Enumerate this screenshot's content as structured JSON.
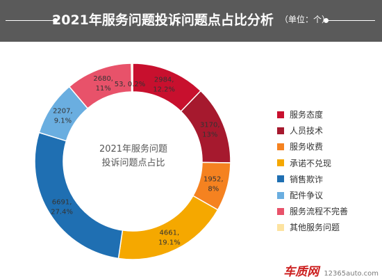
{
  "header": {
    "title": "2021年服务问题投诉问题点占比分析",
    "unit": "（单位：个）"
  },
  "center_label": {
    "line1": "2021年服务问题",
    "line2": "投诉问题点占比"
  },
  "watermark": {
    "brand": "车质网",
    "domain": "12365auto.com"
  },
  "chart_data": {
    "type": "pie",
    "variant": "donut",
    "title": "2021年服务问题投诉问题点占比分析",
    "unit": "个",
    "legend_position": "right",
    "slices": [
      {
        "name": "服务态度",
        "value": 2984,
        "percent": 12.2,
        "label_line1": "2984,",
        "label_line2": "12.2%",
        "color": "#c8102e"
      },
      {
        "name": "人员技术",
        "value": 3170,
        "percent": 13,
        "label_line1": "3170,",
        "label_line2": "13%",
        "color": "#a6192e"
      },
      {
        "name": "服务收费",
        "value": 1952,
        "percent": 8,
        "label_line1": "1952,",
        "label_line2": "8%",
        "color": "#f58220"
      },
      {
        "name": "承诺不兑现",
        "value": 4661,
        "percent": 19.1,
        "label_line1": "4661,",
        "label_line2": "19.1%",
        "color": "#f5a800"
      },
      {
        "name": "销售欺诈",
        "value": 6691,
        "percent": 27.4,
        "label_line1": "6691,",
        "label_line2": "27.4%",
        "color": "#1f6fb2"
      },
      {
        "name": "配件争议",
        "value": 2207,
        "percent": 9.1,
        "label_line1": "2207,",
        "label_line2": "9.1%",
        "color": "#6aaee0"
      },
      {
        "name": "服务流程不完善",
        "value": 2680,
        "percent": 11,
        "label_line1": "2680,",
        "label_line2": "11%",
        "color": "#e8526a"
      },
      {
        "name": "其他服务问题",
        "value": 53,
        "percent": 0.2,
        "label_line1": "53, 0.2%",
        "label_line2": "",
        "color": "#fde3a0"
      }
    ]
  }
}
